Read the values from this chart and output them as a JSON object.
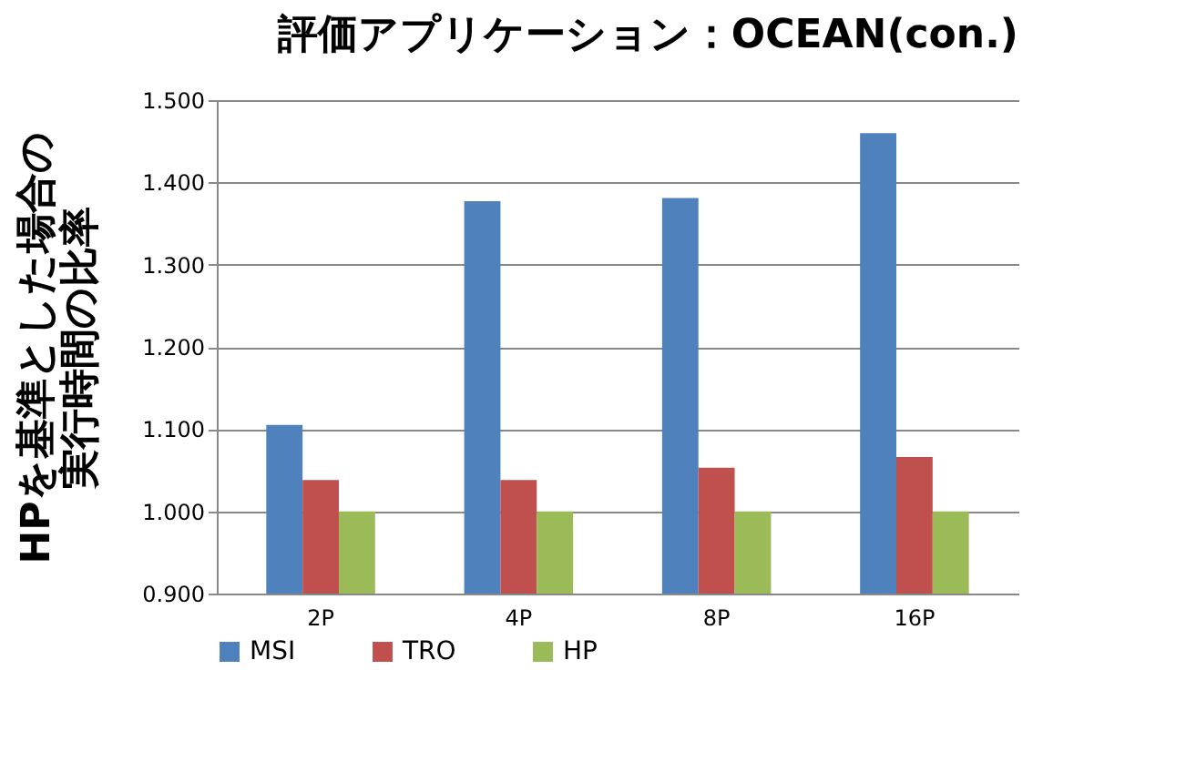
{
  "chart_data": {
    "type": "bar",
    "title": "評価アプリケーション：OCEAN(con.)",
    "ylabel": "HPを基準とした場合の実行時間の比率",
    "categories": [
      "2P",
      "4P",
      "8P",
      "16P"
    ],
    "series": [
      {
        "name": "MSI",
        "color": "#4f81bd",
        "values": [
          1.105,
          1.377,
          1.381,
          1.46
        ]
      },
      {
        "name": "TRO",
        "color": "#c0504d",
        "values": [
          1.038,
          1.038,
          1.053,
          1.066
        ]
      },
      {
        "name": "HP",
        "color": "#9bbb59",
        "values": [
          1.0,
          1.0,
          1.0,
          1.0
        ]
      }
    ],
    "ylim": [
      0.9,
      1.5
    ],
    "yticks": [
      {
        "value": 0.9,
        "label": "0.900"
      },
      {
        "value": 1.0,
        "label": "1.000"
      },
      {
        "value": 1.1,
        "label": "1.100"
      },
      {
        "value": 1.2,
        "label": "1.200"
      },
      {
        "value": 1.3,
        "label": "1.300"
      },
      {
        "value": 1.4,
        "label": "1.400"
      },
      {
        "value": 1.5,
        "label": "1.500"
      }
    ],
    "grid": "y",
    "legend": "bottom"
  }
}
